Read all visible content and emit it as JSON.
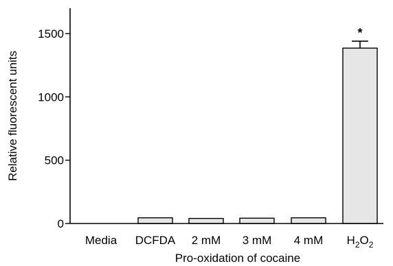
{
  "chart_data": {
    "type": "bar",
    "title": "",
    "xlabel": "Pro-oxidation of cocaine",
    "ylabel": "Relative fluorescent units",
    "ylim": [
      0,
      1700
    ],
    "yticks": [
      0,
      500,
      1000,
      1500
    ],
    "grid": false,
    "categories": [
      {
        "base": "Media"
      },
      {
        "base": "DCFDA"
      },
      {
        "base": "2 mM"
      },
      {
        "base": "3 mM"
      },
      {
        "base": "4 mM"
      },
      {
        "base": "H",
        "sub1": "2",
        "mid": "O",
        "sub2": "2"
      }
    ],
    "values": [
      0,
      45,
      40,
      42,
      45,
      1385
    ],
    "error_upper": [
      0,
      0,
      0,
      0,
      0,
      55
    ],
    "annotations": [
      {
        "category_index": 5,
        "text": "*"
      }
    ],
    "bar_color": "#e6e6e6"
  }
}
